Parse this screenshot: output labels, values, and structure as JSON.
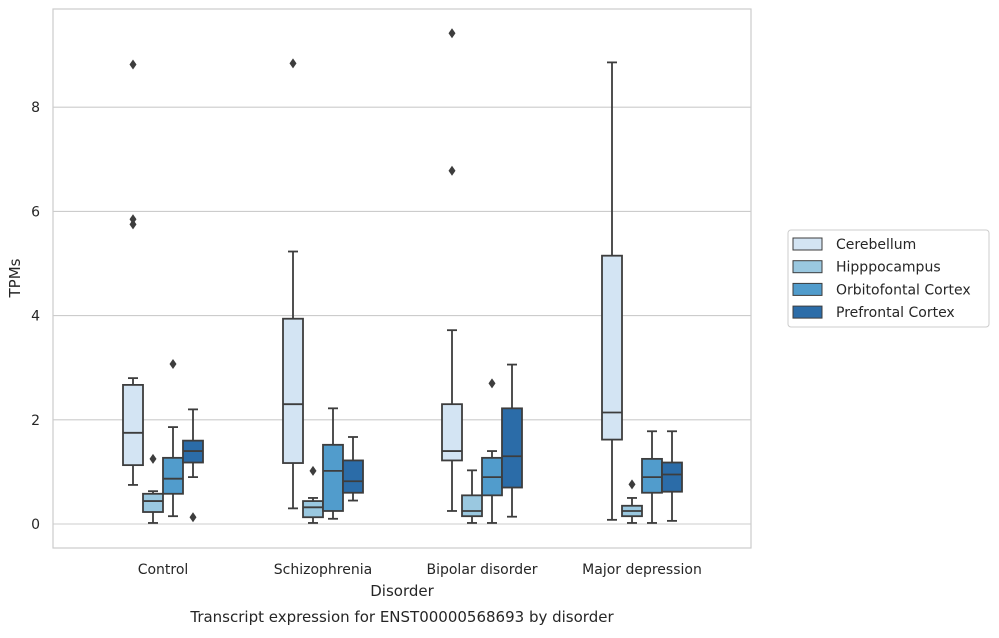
{
  "chart_data": {
    "type": "box",
    "title": "Transcript expression for ENST00000568693 by disorder",
    "xlabel": "Disorder",
    "ylabel": "TPMs",
    "ylim": [
      -0.45,
      9.8
    ],
    "yticks": [
      0,
      2,
      4,
      6,
      8
    ],
    "grid": "horizontal",
    "legend_position": "right, outside plot",
    "categories": [
      "Control",
      "Schizophrenia",
      "Bipolar disorder",
      "Major depression"
    ],
    "series": [
      {
        "name": "Cerebellum",
        "color": "#d3e4f3",
        "boxes": [
          {
            "whislo": 0.75,
            "q1": 1.13,
            "med": 1.75,
            "q3": 2.67,
            "whishi": 2.8,
            "fliers": [
              5.75,
              5.85,
              8.82
            ]
          },
          {
            "whislo": 0.3,
            "q1": 1.17,
            "med": 2.3,
            "q3": 3.94,
            "whishi": 5.23,
            "fliers": [
              8.84
            ]
          },
          {
            "whislo": 0.25,
            "q1": 1.22,
            "med": 1.4,
            "q3": 2.3,
            "whishi": 3.72,
            "fliers": [
              6.78,
              9.42
            ]
          },
          {
            "whislo": 0.08,
            "q1": 1.62,
            "med": 2.14,
            "q3": 5.15,
            "whishi": 8.86,
            "fliers": []
          }
        ]
      },
      {
        "name": "Hipppocampus",
        "color": "#9ac8e0",
        "boxes": [
          {
            "whislo": 0.02,
            "q1": 0.23,
            "med": 0.44,
            "q3": 0.58,
            "whishi": 0.63,
            "fliers": [
              1.25
            ]
          },
          {
            "whislo": 0.02,
            "q1": 0.13,
            "med": 0.32,
            "q3": 0.44,
            "whishi": 0.5,
            "fliers": [
              1.02
            ]
          },
          {
            "whislo": 0.02,
            "q1": 0.15,
            "med": 0.25,
            "q3": 0.55,
            "whishi": 1.03,
            "fliers": []
          },
          {
            "whislo": 0.02,
            "q1": 0.15,
            "med": 0.25,
            "q3": 0.35,
            "whishi": 0.5,
            "fliers": [
              0.76
            ]
          }
        ]
      },
      {
        "name": "Orbitofontal Cortex",
        "color": "#519ccc",
        "boxes": [
          {
            "whislo": 0.15,
            "q1": 0.58,
            "med": 0.87,
            "q3": 1.27,
            "whishi": 1.86,
            "fliers": [
              3.07
            ]
          },
          {
            "whislo": 0.1,
            "q1": 0.25,
            "med": 1.02,
            "q3": 1.52,
            "whishi": 2.22,
            "fliers": []
          },
          {
            "whislo": 0.02,
            "q1": 0.55,
            "med": 0.9,
            "q3": 1.27,
            "whishi": 1.4,
            "fliers": [
              2.7
            ]
          },
          {
            "whislo": 0.02,
            "q1": 0.6,
            "med": 0.9,
            "q3": 1.25,
            "whishi": 1.78,
            "fliers": []
          }
        ]
      },
      {
        "name": "Prefrontal Cortex",
        "color": "#2b6ca8",
        "boxes": [
          {
            "whislo": 0.9,
            "q1": 1.18,
            "med": 1.4,
            "q3": 1.6,
            "whishi": 2.2,
            "fliers": [
              0.13
            ]
          },
          {
            "whislo": 0.45,
            "q1": 0.6,
            "med": 0.82,
            "q3": 1.22,
            "whishi": 1.67,
            "fliers": []
          },
          {
            "whislo": 0.14,
            "q1": 0.7,
            "med": 1.3,
            "q3": 2.22,
            "whishi": 3.06,
            "fliers": []
          },
          {
            "whislo": 0.06,
            "q1": 0.62,
            "med": 0.95,
            "q3": 1.18,
            "whishi": 1.78,
            "fliers": []
          }
        ]
      }
    ]
  }
}
